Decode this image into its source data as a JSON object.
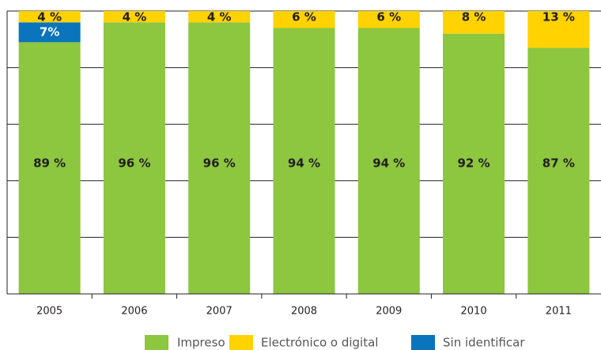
{
  "chart_data": {
    "type": "stacked_bar",
    "categories": [
      "2005",
      "2006",
      "2007",
      "2008",
      "2009",
      "2010",
      "2011"
    ],
    "series": [
      {
        "name": "Impreso",
        "color": "#8dc63f",
        "values": [
          89,
          96,
          96,
          94,
          94,
          92,
          87
        ],
        "value_labels": [
          "89 %",
          "96 %",
          "96 %",
          "94 %",
          "94 %",
          "92 %",
          "87 %"
        ]
      },
      {
        "name": "Sin identificar",
        "color": "#0a74bc",
        "values": [
          7,
          null,
          null,
          null,
          null,
          null,
          null
        ],
        "value_labels": [
          "7%",
          null,
          null,
          null,
          null,
          null,
          null
        ]
      },
      {
        "name": "Electrónico o digital",
        "color": "#ffd200",
        "values": [
          4,
          4,
          4,
          6,
          6,
          8,
          13
        ],
        "value_labels": [
          "4 %",
          "4 %",
          "4 %",
          "6 %",
          "6 %",
          "8 %",
          "13 %"
        ]
      }
    ],
    "ylim": [
      0,
      100
    ],
    "yticks": [
      0,
      20,
      40,
      60,
      80,
      100
    ],
    "grid": true
  }
}
